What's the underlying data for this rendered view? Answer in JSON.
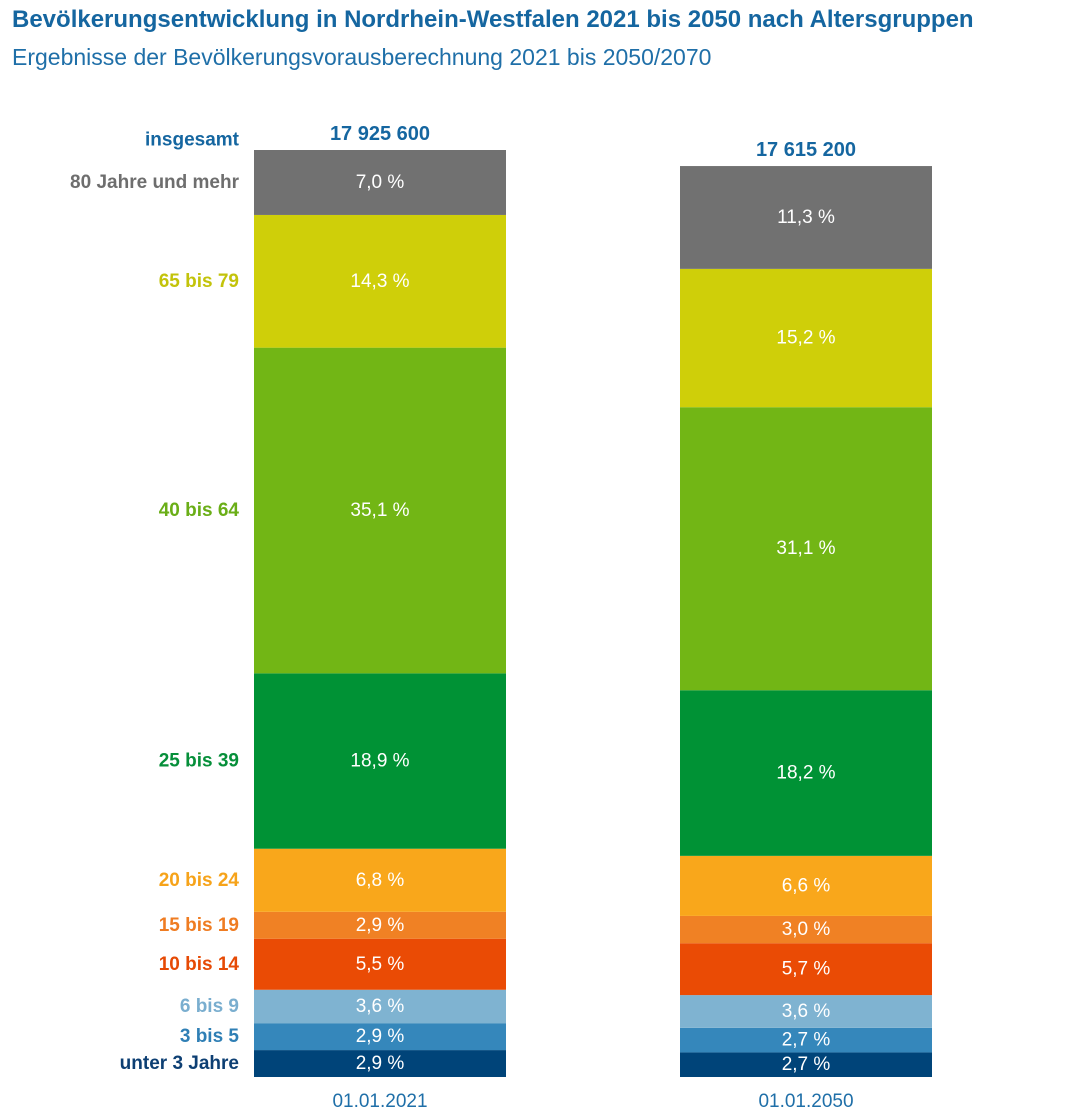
{
  "header": {
    "title": "Bevölkerungsentwicklung in Nordrhein-Westfalen 2021 bis 2050 nach Altersgruppen",
    "subtitle": "Ergebnisse der Bevölkerungsvorausberechnung 2021 bis 2050/2070"
  },
  "chart_data": {
    "type": "bar",
    "stacked": true,
    "unit": "%",
    "total_label": "insgesamt",
    "categories": [
      "unter 3 Jahre",
      "3 bis 5",
      "6 bis 9",
      "10 bis 14",
      "15 bis 19",
      "20 bis 24",
      "25 bis 39",
      "40 bis 64",
      "65 bis 79",
      "80 Jahre und mehr"
    ],
    "colors": [
      "#004479",
      "#3587bb",
      "#7fb3d1",
      "#ea4b05",
      "#f08124",
      "#f9a71b",
      "#009235",
      "#72b615",
      "#cfcf09",
      "#717171"
    ],
    "label_colors": [
      "#0d3f73",
      "#2f7fb5",
      "#7aaecf",
      "#e64a05",
      "#ef7c22",
      "#f6a31a",
      "#068f3a",
      "#6aae17",
      "#c3c30b",
      "#6e6e6e"
    ],
    "bars": [
      {
        "date": "01.01.2021",
        "total": "17 925 600",
        "total_value": 17925600,
        "values": [
          2.9,
          2.9,
          3.6,
          5.5,
          2.9,
          6.8,
          18.9,
          35.1,
          14.3,
          7.0
        ],
        "value_labels": [
          "2,9 %",
          "2,9 %",
          "3,6 %",
          "5,5 %",
          "2,9 %",
          "6,8 %",
          "18,9 %",
          "35,1 %",
          "14,3 %",
          "7,0 %"
        ]
      },
      {
        "date": "01.01.2050",
        "total": "17 615 200",
        "total_value": 17615200,
        "values": [
          2.7,
          2.7,
          3.6,
          5.7,
          3.0,
          6.6,
          18.2,
          31.1,
          15.2,
          11.3
        ],
        "value_labels": [
          "2,7 %",
          "2,7 %",
          "3,6 %",
          "5,7 %",
          "3,0 %",
          "6,6 %",
          "18,2 %",
          "31,1 %",
          "15,2 %",
          "11,3 %"
        ]
      }
    ]
  }
}
